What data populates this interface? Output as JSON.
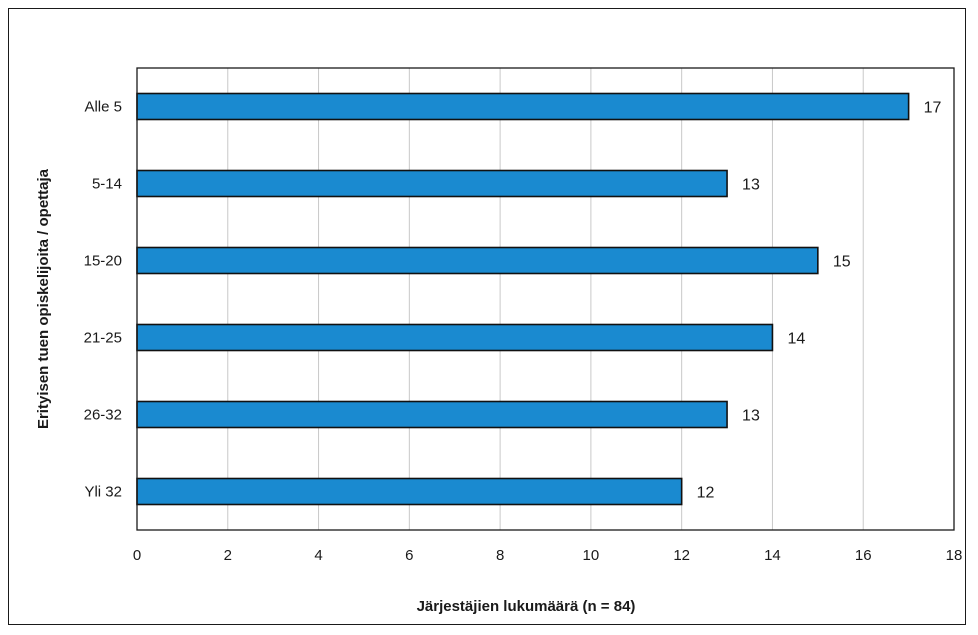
{
  "chart_data": {
    "type": "bar",
    "orientation": "horizontal",
    "categories": [
      "Alle 5",
      "5-14",
      "15-20",
      "21-25",
      "26-32",
      "Yli 32"
    ],
    "values": [
      17,
      13,
      15,
      14,
      13,
      12
    ],
    "data_labels": [
      "17",
      "13",
      "15",
      "14",
      "13",
      "12"
    ],
    "xlabel": "Järjestäjien lukumäärä (n = 84)",
    "ylabel": "Erityisen tuen opiskelijoita / opettaja",
    "xlim": [
      0,
      18
    ],
    "x_ticks": [
      0,
      2,
      4,
      6,
      8,
      10,
      12,
      14,
      16,
      18
    ],
    "grid": "vertical",
    "legend": "none",
    "bar_color": "#1a8ad0",
    "bar_edge_color": "#111111",
    "grid_color": "#c8c8c8"
  }
}
